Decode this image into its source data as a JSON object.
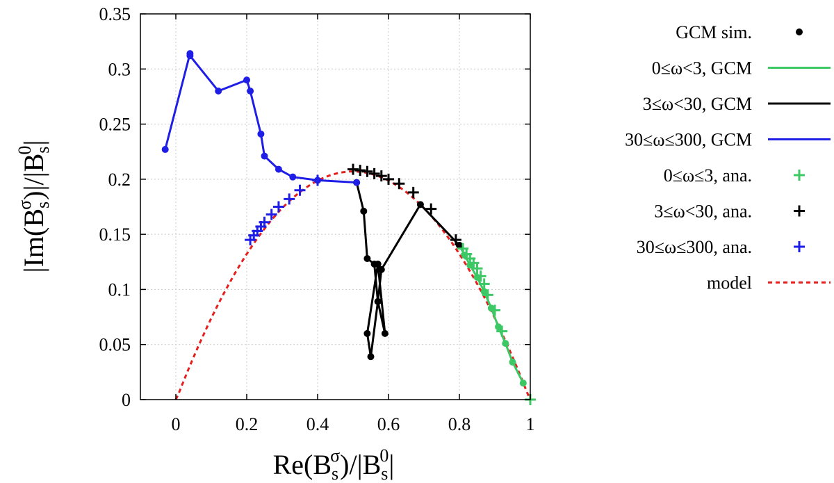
{
  "chart_data": {
    "type": "scatter",
    "xlabel": "Re(B_s^σ)/|B_s^0|",
    "ylabel": "|Im(B_s^σ)|/|B_s^0|",
    "xlabel_parts": {
      "a": "Re(B",
      "sub": "s",
      "sup": "σ",
      "b": ")/|B",
      "sub2": "s",
      "sup2": "0",
      "c": "|"
    },
    "ylabel_parts": {
      "a": "|Im(B",
      "sub": "s",
      "sup": "σ",
      "b": ")|/|B",
      "sub2": "s",
      "sup2": "0",
      "c": "|"
    },
    "xlim": [
      -0.1,
      1.0
    ],
    "ylim": [
      0,
      0.35
    ],
    "xticks": [
      0,
      0.2,
      0.4,
      0.6,
      0.8,
      1
    ],
    "xtick_labels": [
      "0",
      "0.2",
      "0.4",
      "0.6",
      "0.8",
      "1"
    ],
    "yticks": [
      0,
      0.05,
      0.1,
      0.15,
      0.2,
      0.25,
      0.3,
      0.35
    ],
    "ytick_labels": [
      "0",
      "0.05",
      "0.1",
      "0.15",
      "0.2",
      "0.25",
      "0.3",
      "0.35"
    ],
    "grid": true,
    "legend_position": "right",
    "series": [
      {
        "name": "GCM sim.",
        "kind": "points-legend",
        "color": "#000000"
      },
      {
        "name": "0≤ω<3, GCM",
        "kind": "line",
        "color": "#3cc864",
        "x": [
          0.98,
          0.95,
          0.93,
          0.91,
          0.89,
          0.87,
          0.85,
          0.83,
          0.815,
          0.8
        ],
        "y": [
          0.015,
          0.034,
          0.051,
          0.066,
          0.083,
          0.098,
          0.111,
          0.122,
          0.131,
          0.14
        ]
      },
      {
        "name": "3≤ω<30, GCM",
        "kind": "line",
        "color": "#000000",
        "x": [
          0.8,
          0.69,
          0.58,
          0.57,
          0.55,
          0.54,
          0.57,
          0.59,
          0.57,
          0.56,
          0.54,
          0.53,
          0.51
        ],
        "y": [
          0.14,
          0.177,
          0.118,
          0.089,
          0.039,
          0.06,
          0.123,
          0.06,
          0.089,
          0.123,
          0.128,
          0.171,
          0.197
        ]
      },
      {
        "name": "30≤ω≤300, GCM",
        "kind": "line",
        "color": "#1e1ee6",
        "x": [
          0.51,
          0.4,
          0.33,
          0.29,
          0.25,
          0.24,
          0.21,
          0.2,
          0.12,
          0.04,
          0.04,
          -0.03
        ],
        "y": [
          0.197,
          0.199,
          0.202,
          0.209,
          0.221,
          0.241,
          0.28,
          0.29,
          0.28,
          0.312,
          0.314,
          0.227
        ]
      },
      {
        "name": "0≤ω≤3, ana.",
        "kind": "plus",
        "color": "#3cc864",
        "x": [
          1.0,
          0.92,
          0.9,
          0.88,
          0.87,
          0.86,
          0.85,
          0.84,
          0.83,
          0.82,
          0.81
        ],
        "y": [
          0.0,
          0.062,
          0.081,
          0.095,
          0.105,
          0.112,
          0.119,
          0.124,
          0.128,
          0.132,
          0.137
        ]
      },
      {
        "name": "3≤ω<30, ana.",
        "kind": "plus",
        "color": "#000000",
        "x": [
          0.79,
          0.72,
          0.67,
          0.63,
          0.6,
          0.58,
          0.56,
          0.54,
          0.52,
          0.5
        ],
        "y": [
          0.145,
          0.173,
          0.188,
          0.196,
          0.2,
          0.203,
          0.205,
          0.207,
          0.208,
          0.209
        ]
      },
      {
        "name": "30≤ω≤300, ana.",
        "kind": "plus",
        "color": "#1e1ee6",
        "x": [
          0.4,
          0.35,
          0.32,
          0.29,
          0.27,
          0.25,
          0.24,
          0.23,
          0.22,
          0.21
        ],
        "y": [
          0.199,
          0.19,
          0.182,
          0.175,
          0.168,
          0.161,
          0.157,
          0.153,
          0.149,
          0.145
        ]
      },
      {
        "name": "model",
        "kind": "dashed",
        "color": "#e61e1e",
        "equation": "y = 0.207 - 0.832*(x-0.5)^2"
      }
    ]
  }
}
